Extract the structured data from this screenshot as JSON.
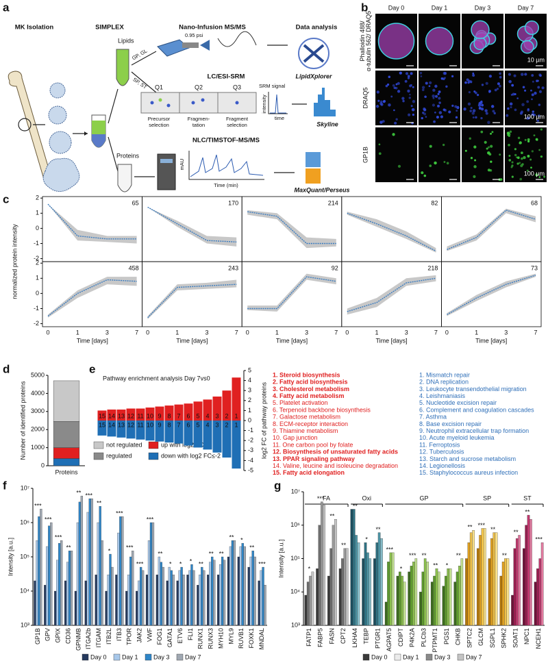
{
  "panel_labels": [
    "a",
    "b",
    "c",
    "d",
    "e",
    "f",
    "g"
  ],
  "diagram": {
    "steps": [
      "MK Isolation",
      "SIMPLEX",
      "Nano-Infusion MS/MS",
      "Data analysis"
    ],
    "lipids": "Lipids",
    "proteins": "Proteins",
    "lipid_classes_1": "GP, GL",
    "lipid_classes_2": "SP, ST",
    "pressure": "0.95 psi",
    "lipidxplorer": "LipidXplorer",
    "lc_method": "LC/ESI-SRM",
    "quadrupoles": [
      "Q1",
      "Q2",
      "Q3"
    ],
    "quadrupole_steps": [
      [
        "Precursor",
        "selection"
      ],
      [
        "Fragmen-",
        "tation"
      ],
      [
        "Fragment",
        "selection"
      ]
    ],
    "srm_signal": "SRM signal",
    "srm_y": "intensity",
    "srm_x": "time",
    "skyline": "Skyline",
    "protein_method": "NLC/TIMSTOF-MS/MS",
    "chrom_y": "mAU",
    "chrom_x": "Time (min)",
    "maxquant": "MaxQuant/Perseus"
  },
  "microscopy": {
    "columns": [
      "Day 0",
      "Day 1",
      "Day 3",
      "Day 7"
    ],
    "rows": [
      {
        "label": [
          "Phalloidin 488/",
          "α-tubulin 562/ DRAQ5"
        ],
        "scale": "10 µm"
      },
      {
        "label": [
          "DRAQ5"
        ],
        "scale": "100 µm"
      },
      {
        "label": [
          "GP1B"
        ],
        "scale": "100 µm"
      }
    ]
  },
  "chart_data": [
    {
      "type": "small-multiples-line",
      "ylabel": "normalized protein intensity",
      "xlabel": "Time [days]",
      "categories": [
        "0",
        "1",
        "3",
        "7"
      ],
      "ylim": [
        -2.2,
        2.1
      ],
      "yticks": [
        -2,
        -1,
        0,
        1,
        2
      ],
      "color": "#3a7cc0",
      "band_color": "#c8c8c8",
      "columns": 5,
      "panels": [
        {
          "label": "65",
          "values": [
            1.6,
            -0.5,
            -0.7,
            -0.7
          ],
          "lower": [
            1.6,
            -0.8,
            -0.9,
            -1.0
          ],
          "upper": [
            1.6,
            -0.1,
            -0.5,
            -0.5
          ]
        },
        {
          "label": "170",
          "values": [
            1.4,
            0.3,
            -0.8,
            -0.9
          ],
          "lower": [
            1.4,
            0.1,
            -1.0,
            -1.2
          ],
          "upper": [
            1.4,
            0.5,
            -0.5,
            -0.6
          ]
        },
        {
          "label": "214",
          "values": [
            1.1,
            0.8,
            -1.0,
            -1.0
          ],
          "lower": [
            0.9,
            0.6,
            -1.3,
            -1.2
          ],
          "upper": [
            1.2,
            1.0,
            -0.6,
            -0.7
          ]
        },
        {
          "label": "82",
          "values": [
            1.0,
            0.3,
            -0.5,
            -1.5
          ],
          "lower": [
            0.9,
            0.1,
            -0.7,
            -1.6
          ],
          "upper": [
            1.1,
            0.6,
            -0.2,
            -1.3
          ]
        },
        {
          "label": "68",
          "values": [
            -1.4,
            -0.6,
            1.2,
            0.6
          ],
          "lower": [
            -1.5,
            -0.8,
            1.0,
            0.4
          ],
          "upper": [
            -1.2,
            -0.4,
            1.3,
            0.8
          ]
        },
        {
          "label": "458",
          "values": [
            -1.5,
            0.0,
            0.9,
            0.8
          ],
          "lower": [
            -1.6,
            -0.3,
            0.6,
            0.5
          ],
          "upper": [
            -1.4,
            0.2,
            1.1,
            1.1
          ]
        },
        {
          "label": "243",
          "values": [
            -1.6,
            0.4,
            0.5,
            0.6
          ],
          "lower": [
            -1.7,
            0.2,
            0.3,
            0.4
          ],
          "upper": [
            -1.5,
            0.6,
            0.7,
            0.9
          ]
        },
        {
          "label": "92",
          "values": [
            -1.0,
            -1.0,
            1.1,
            0.8
          ],
          "lower": [
            -1.1,
            -1.2,
            0.9,
            0.6
          ],
          "upper": [
            -0.8,
            -0.8,
            1.3,
            1.0
          ]
        },
        {
          "label": "218",
          "values": [
            -1.2,
            -0.6,
            0.7,
            1.0
          ],
          "lower": [
            -1.4,
            -0.9,
            0.5,
            0.8
          ],
          "upper": [
            -1.0,
            -0.3,
            1.0,
            1.2
          ]
        },
        {
          "label": "73",
          "values": [
            -1.4,
            -0.3,
            0.6,
            1.2
          ],
          "lower": [
            -1.5,
            -0.5,
            0.4,
            1.1
          ],
          "upper": [
            -1.3,
            -0.1,
            0.8,
            1.3
          ]
        }
      ]
    },
    {
      "type": "stacked-bar",
      "ylabel": "Number of identified proteins",
      "categories": [
        "Proteins"
      ],
      "ylim": [
        0,
        5000
      ],
      "yticks": [
        0,
        1000,
        2000,
        3000,
        4000,
        5000
      ],
      "series": [
        {
          "name": "down with log2 FC≤-2",
          "color": "#1f6fb5",
          "values": [
            400
          ]
        },
        {
          "name": "up with log2 FC≥2",
          "color": "#e02020",
          "values": [
            600
          ]
        },
        {
          "name": "regulated",
          "color": "#8a8a8a",
          "values": [
            1450
          ]
        },
        {
          "name": "not regulated",
          "color": "#c8c8c8",
          "values": [
            2250
          ]
        }
      ]
    },
    {
      "type": "diverging-bar",
      "title": "Pathway enrichment analysis Day 7vs0",
      "ylabel": "log2 FC of pathway proteins",
      "categories": [
        "15",
        "14",
        "13",
        "12",
        "11",
        "10",
        "9",
        "8",
        "7",
        "6",
        "5",
        "4",
        "3",
        "2",
        "1"
      ],
      "ylim": [
        -5,
        5
      ],
      "yticks": [
        -5,
        -4,
        -3,
        -2,
        -1,
        0,
        1,
        2,
        3,
        4,
        5
      ],
      "series": [
        {
          "color": "#e02020",
          "values": [
            1.0,
            1.1,
            1.1,
            1.2,
            1.2,
            1.3,
            1.4,
            1.5,
            1.6,
            1.7,
            1.9,
            2.1,
            2.4,
            3.0,
            4.3
          ]
        },
        {
          "color": "#1f6fb5",
          "values": [
            -1.5,
            -1.6,
            -1.7,
            -1.8,
            -1.9,
            -2.0,
            -2.1,
            -2.2,
            -2.3,
            -2.5,
            -2.7,
            -2.9,
            -3.2,
            -3.7,
            -4.8
          ]
        }
      ],
      "pathway_lists": [
        {
          "color": "#e02020",
          "items": [
            {
              "text": "1. Steroid biosynthesis",
              "bold": true
            },
            {
              "text": "2. Fatty acid biosynthesis",
              "bold": true
            },
            {
              "text": "3. Cholesterol metabolism",
              "bold": true
            },
            {
              "text": "4. Fatty acid metabolism",
              "bold": true
            },
            {
              "text": "5. Platelet activation",
              "bold": false
            },
            {
              "text": "6. Terpenoid backbone biosynthesis",
              "bold": false
            },
            {
              "text": "7. Galactose metabolism",
              "bold": false
            },
            {
              "text": "8. ECM-receptor interaction",
              "bold": false
            },
            {
              "text": "9. Thiamine metabolism",
              "bold": false
            },
            {
              "text": "10. Gap junction",
              "bold": false
            },
            {
              "text": "11. One carbon pool by folate",
              "bold": false
            },
            {
              "text": "12. Biosynthesis of unsaturated fatty acids",
              "bold": true
            },
            {
              "text": "13. PPAR signaling pathway",
              "bold": true
            },
            {
              "text": "14. Valine, leucine and isoleucine degradation",
              "bold": false
            },
            {
              "text": "15. Fatty acid elongation",
              "bold": true
            }
          ]
        },
        {
          "color": "#2f6fb8",
          "items": [
            {
              "text": "1. Mismatch repair",
              "bold": false
            },
            {
              "text": "2. DNA replication",
              "bold": false
            },
            {
              "text": "3. Leukocyte transendothelial migration",
              "bold": false
            },
            {
              "text": "4. Leishmaniasis",
              "bold": false
            },
            {
              "text": "5. Nucleotide excision repair",
              "bold": false
            },
            {
              "text": "6. Complement and coagulation cascades",
              "bold": false
            },
            {
              "text": "7. Asthma",
              "bold": false
            },
            {
              "text": "8. Base excision repair",
              "bold": false
            },
            {
              "text": "9. Neutrophil extracellular trap formation",
              "bold": false
            },
            {
              "text": "10. Acute myeloid leukemia",
              "bold": false
            },
            {
              "text": "11. Ferroptosis",
              "bold": false
            },
            {
              "text": "12. Tuberculosis",
              "bold": false
            },
            {
              "text": "13. Starch and sucrose metabolism",
              "bold": false
            },
            {
              "text": "14. Legionellosis",
              "bold": false
            },
            {
              "text": "15. Staphylococcus aureus infection",
              "bold": false
            }
          ]
        }
      ]
    },
    {
      "type": "grouped-bar",
      "log_scale": true,
      "ylabel": "Intensity [a.u.]",
      "ylim": [
        1000,
        10000000
      ],
      "yticks": [
        {
          "value": 1000,
          "label": "10³"
        },
        {
          "value": 10000,
          "label": "10⁴"
        },
        {
          "value": 100000,
          "label": "10⁵"
        },
        {
          "value": 1000000,
          "label": "10⁶"
        },
        {
          "value": 10000000,
          "label": "10⁷"
        }
      ],
      "categories": [
        "GP1B",
        "GPV",
        "GPIX",
        "CD36",
        "GPNMB",
        "ITGA2b",
        "ITGAM",
        "ITB2L",
        "ITB3",
        "TPOR",
        "JAK2",
        "VWF",
        "FOG1",
        "GATA1",
        "ETV6",
        "FLI1",
        "RUNX1",
        "RUNX3",
        "MYH10",
        "MYL9",
        "RUVB1",
        "FOXK1",
        "MNDAL"
      ],
      "series": [
        {
          "name": "Day 0",
          "color": "#263a5e",
          "values": [
            20000.0,
            15000.0,
            10000.0,
            20000.0,
            10000.0,
            20000.0,
            30000.0,
            10000.0,
            30000.0,
            10000.0,
            10000.0,
            30000.0,
            30000.0,
            20000.0,
            20000.0,
            30000.0,
            15000.0,
            30000.0,
            30000.0,
            100000.0,
            100000.0,
            50000.0,
            20000.0
          ]
        },
        {
          "name": "Day 1",
          "color": "#a8c8ea",
          "values": [
            300000.0,
            200000.0,
            80000.0,
            70000.0,
            1000000.0,
            2000000.0,
            1000000.0,
            30000.0,
            500000.0,
            30000.0,
            20000.0,
            300000.0,
            100000.0,
            50000.0,
            40000.0,
            40000.0,
            30000.0,
            70000.0,
            60000.0,
            200000.0,
            200000.0,
            100000.0,
            40000.0
          ]
        },
        {
          "name": "Day 3",
          "color": "#2f86c8",
          "values": [
            1500000.0,
            800000.0,
            250000.0,
            150000.0,
            4000000.0,
            5000000.0,
            3000000.0,
            120000.0,
            1500000.0,
            100000.0,
            50000.0,
            1000000.0,
            70000.0,
            40000.0,
            50000.0,
            60000.0,
            50000.0,
            100000.0,
            100000.0,
            300000.0,
            250000.0,
            150000.0,
            50000.0
          ]
        },
        {
          "name": "Day 7",
          "color": "#a0a8b2",
          "values": [
            2500000.0,
            1000000.0,
            300000.0,
            150000.0,
            6000000.0,
            5000000.0,
            300000.0,
            50000.0,
            1500000.0,
            150000.0,
            40000.0,
            1000000.0,
            50000.0,
            30000.0,
            30000.0,
            40000.0,
            40000.0,
            80000.0,
            80000.0,
            300000.0,
            200000.0,
            100000.0,
            15000.0
          ]
        }
      ],
      "significance": [
        "***",
        "***",
        "***",
        "**",
        "**",
        "***",
        "**",
        "*",
        "***",
        "***",
        "***",
        "***",
        "**",
        "*",
        "*",
        "*",
        "**",
        "**",
        "**",
        "**",
        "*",
        "**",
        "***"
      ]
    },
    {
      "type": "grouped-bar",
      "log_scale": true,
      "ylabel": "Intensity [a.u.]",
      "ylim": [
        1000,
        10000000
      ],
      "yticks": [
        {
          "value": 1000,
          "label": "10³"
        },
        {
          "value": 10000,
          "label": "10⁴"
        },
        {
          "value": 100000,
          "label": "10⁵"
        },
        {
          "value": 1000000,
          "label": "10⁶"
        },
        {
          "value": 10000000,
          "label": "10⁷"
        }
      ],
      "categories": [
        "FATP1",
        "FABP5",
        "FASN",
        "CPT2",
        "LKHA4",
        "TEBP",
        "PTGR1",
        "AGPAT5",
        "CDIPT",
        "P4K2A",
        "PLCb3",
        "PTPMT1",
        "PGS1",
        "CHKB",
        "SPTC2",
        "GLCM",
        "SGPL1",
        "SPHK2",
        "SOAT1",
        "NPC1",
        "NCEH1"
      ],
      "groups": [
        {
          "name": "FA",
          "count": 4,
          "colors": [
            "#3a3a3a",
            "#6e6e6e",
            "#9a9a9a",
            "#c4c4c4"
          ]
        },
        {
          "name": "Oxi",
          "count": 3,
          "colors": [
            "#1d4e5e",
            "#2f7283",
            "#4d95a5",
            "#86bcc8"
          ]
        },
        {
          "name": "GP",
          "count": 7,
          "colors": [
            "#3d6b1f",
            "#5e9a2e",
            "#8cc04e",
            "#c0de8f"
          ]
        },
        {
          "name": "SP",
          "count": 4,
          "colors": [
            "#b5780a",
            "#e0a020",
            "#f0c24a",
            "#f8e08a"
          ]
        },
        {
          "name": "ST",
          "count": 3,
          "colors": [
            "#6e1238",
            "#9a1e50",
            "#c0386e",
            "#e27aa0"
          ]
        }
      ],
      "series": [
        {
          "name": "Day 0",
          "color": "#3a3a3a",
          "values": [
            8000.0,
            50000.0,
            30000.0,
            50000.0,
            3000000.0,
            100000.0,
            100000.0,
            5000.0,
            30000.0,
            40000.0,
            10000.0,
            20000.0,
            15000.0,
            20000.0,
            100000.0,
            200000.0,
            100000.0,
            30000.0,
            8000.0,
            200000.0,
            20000.0
          ]
        },
        {
          "name": "Day 1",
          "color": "#ececec",
          "values": [
            20000.0,
            1000000.0,
            200000.0,
            100000.0,
            3000000.0,
            300000.0,
            300000.0,
            80000.0,
            40000.0,
            60000.0,
            40000.0,
            30000.0,
            30000.0,
            40000.0,
            300000.0,
            500000.0,
            400000.0,
            80000.0,
            200000.0,
            1000000.0,
            50000.0
          ]
        },
        {
          "name": "Day 3",
          "color": "#8a8a8a",
          "values": [
            30000.0,
            5000000.0,
            1000000.0,
            200000.0,
            500000.0,
            150000.0,
            600000.0,
            150000.0,
            30000.0,
            80000.0,
            100000.0,
            50000.0,
            50000.0,
            60000.0,
            600000.0,
            800000.0,
            600000.0,
            100000.0,
            400000.0,
            2000000.0,
            100000.0
          ]
        },
        {
          "name": "Day 7",
          "color": "#c4c4c4",
          "values": [
            40000.0,
            4000000.0,
            1500000.0,
            200000.0,
            300000.0,
            100000.0,
            400000.0,
            150000.0,
            20000.0,
            100000.0,
            80000.0,
            40000.0,
            50000.0,
            100000.0,
            700000.0,
            800000.0,
            600000.0,
            100000.0,
            500000.0,
            1500000.0,
            300000.0
          ]
        }
      ],
      "significance": [
        "*",
        "***",
        "**",
        "**",
        "**",
        "*",
        "**",
        "***",
        "*",
        "***",
        "**",
        "**",
        "*",
        "**",
        "**",
        "***",
        "**",
        "**",
        "**",
        "**",
        "***"
      ]
    }
  ]
}
